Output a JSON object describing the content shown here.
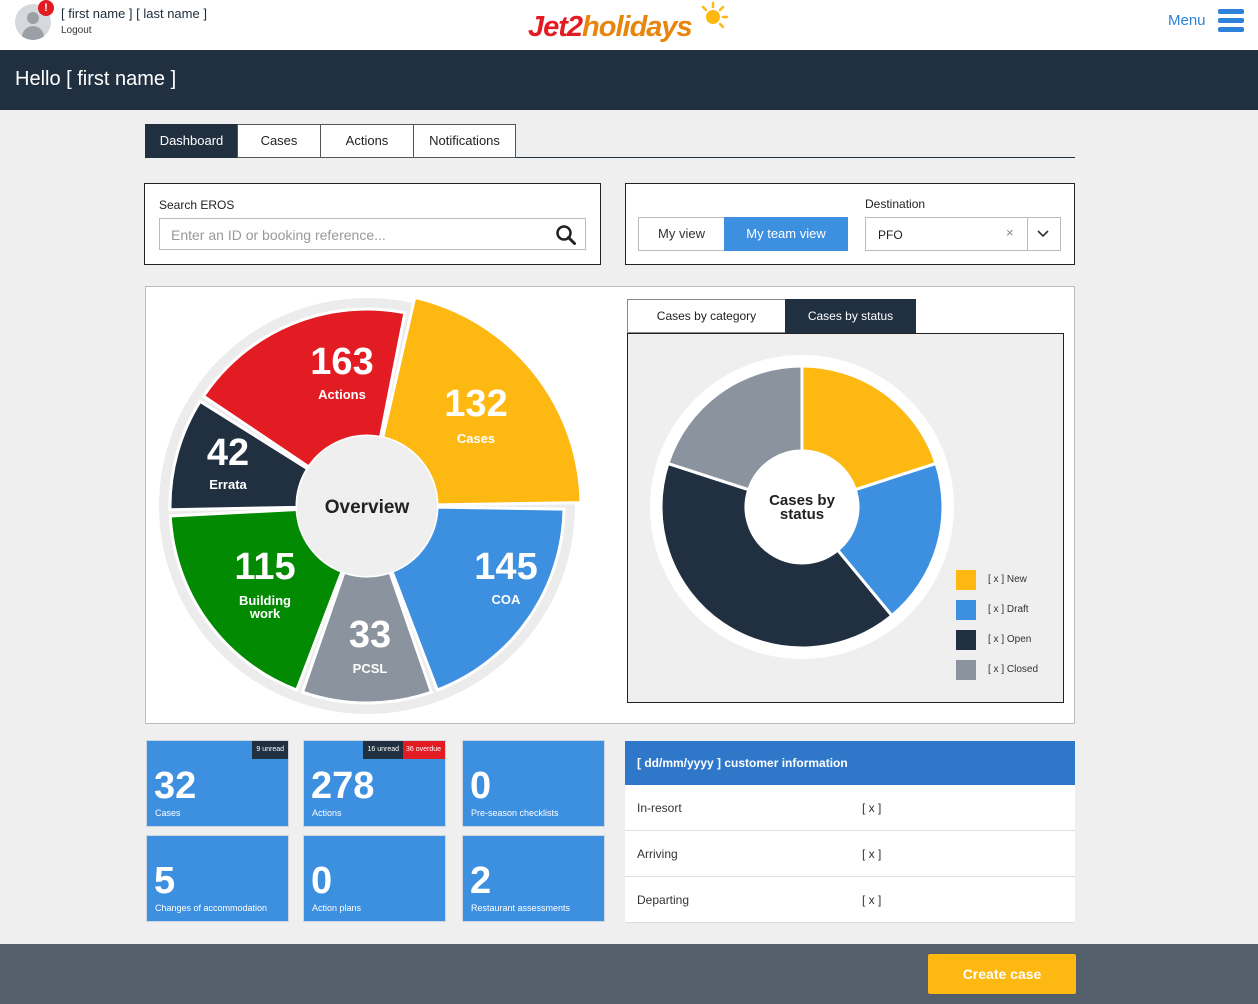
{
  "header": {
    "user_name": "[ first name ] [ last name ]",
    "logout_label": "Logout",
    "alert_badge": "!",
    "logo": {
      "part1": "Jet2",
      "part2": "holidays"
    },
    "menu_label": "Menu"
  },
  "hello": {
    "text": "Hello [ first name ]"
  },
  "tabs": [
    {
      "label": "Dashboard",
      "active": true
    },
    {
      "label": "Cases",
      "active": false
    },
    {
      "label": "Actions",
      "active": false
    },
    {
      "label": "Notifications",
      "active": false
    }
  ],
  "search": {
    "label": "Search EROS",
    "placeholder": "Enter an ID or booking reference...",
    "value": ""
  },
  "view": {
    "my_view_label": "My view",
    "team_view_label": "My team view",
    "selected": "My team view",
    "destination_label": "Destination",
    "destination_value": "PFO",
    "clear_symbol": "×"
  },
  "overview": {
    "center_label": "Overview",
    "segments": [
      {
        "value": "132",
        "label": "Cases",
        "color": "#fdb812"
      },
      {
        "value": "145",
        "label": "COA",
        "color": "#3d8fe0"
      },
      {
        "value": "33",
        "label": "PCSL",
        "color": "#8a939e"
      },
      {
        "value": "115",
        "label": "Building work",
        "color": "#038a03"
      },
      {
        "value": "42",
        "label": "Errata",
        "color": "#203040"
      },
      {
        "value": "163",
        "label": "Actions",
        "color": "#e31b23"
      }
    ]
  },
  "chart_tabs": [
    {
      "label": "Cases by category",
      "active": false
    },
    {
      "label": "Cases by status",
      "active": true
    }
  ],
  "chart_data": {
    "type": "pie",
    "title": "Cases by status",
    "categories": [
      "[ x ] New",
      "[ x ] Draft",
      "[ x ] Open",
      "[ x ] Closed"
    ],
    "values": [
      20,
      19,
      41,
      20
    ],
    "colors": [
      "#fdb812",
      "#3d8fe0",
      "#203040",
      "#8a939e"
    ],
    "legend_position": "bottom-right"
  },
  "tiles": [
    {
      "value": "32",
      "label": "Cases",
      "badges": [
        {
          "text": "9 unread",
          "style": "dark"
        }
      ]
    },
    {
      "value": "278",
      "label": "Actions",
      "badges": [
        {
          "text": "16 unread",
          "style": "dark"
        },
        {
          "text": "36 overdue",
          "style": "red"
        }
      ]
    },
    {
      "value": "0",
      "label": "Pre-season checklists",
      "badges": []
    },
    {
      "value": "5",
      "label": "Changes of accommodation",
      "badges": []
    },
    {
      "value": "0",
      "label": "Action plans",
      "badges": []
    },
    {
      "value": "2",
      "label": "Restaurant assessments",
      "badges": []
    }
  ],
  "customer_info": {
    "title": "[ dd/mm/yyyy ] customer information",
    "rows": [
      {
        "label": "In-resort",
        "value": "[ x ]"
      },
      {
        "label": "Arriving",
        "value": "[ x ]"
      },
      {
        "label": "Departing",
        "value": "[ x ]"
      }
    ]
  },
  "footer": {
    "create_label": "Create case"
  },
  "colors": {
    "navy": "#203040",
    "blue": "#3d8fe0",
    "yellow": "#fdb812",
    "red": "#e31b23",
    "green": "#038a03",
    "grey": "#8a939e",
    "footer": "#535f6b"
  }
}
